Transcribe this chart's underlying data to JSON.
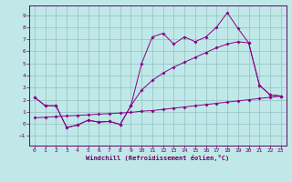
{
  "bg_color": "#c0e8e8",
  "grid_color": "#90c0c0",
  "line_color": "#880088",
  "spine_color": "#660066",
  "tick_color": "#660066",
  "xlabel": "Windchill (Refroidissement éolien,°C)",
  "xlim": [
    -0.5,
    23.5
  ],
  "ylim": [
    -1.8,
    9.8
  ],
  "xticks": [
    0,
    1,
    2,
    3,
    4,
    5,
    6,
    7,
    8,
    9,
    10,
    11,
    12,
    13,
    14,
    15,
    16,
    17,
    18,
    19,
    20,
    21,
    22,
    23
  ],
  "yticks": [
    -1,
    0,
    1,
    2,
    3,
    4,
    5,
    6,
    7,
    8,
    9
  ],
  "curve1_x": [
    0,
    1,
    2,
    3,
    4,
    5,
    6,
    7,
    8,
    9,
    10,
    11,
    12,
    13,
    14,
    15,
    16,
    17,
    18,
    19,
    20,
    21,
    22,
    23
  ],
  "curve1_y": [
    2.2,
    1.5,
    1.5,
    -0.3,
    -0.1,
    0.3,
    0.15,
    0.2,
    -0.05,
    1.5,
    5.0,
    7.2,
    7.5,
    6.6,
    7.2,
    6.8,
    7.2,
    8.0,
    9.2,
    7.9,
    6.7,
    3.2,
    2.4,
    2.3
  ],
  "curve2_x": [
    0,
    1,
    2,
    3,
    4,
    5,
    6,
    7,
    8,
    9,
    10,
    11,
    12,
    13,
    14,
    15,
    16,
    17,
    18,
    19,
    20,
    21,
    22,
    23
  ],
  "curve2_y": [
    2.2,
    1.5,
    1.5,
    -0.3,
    -0.1,
    0.3,
    0.15,
    0.2,
    -0.05,
    1.5,
    2.8,
    3.6,
    4.2,
    4.7,
    5.1,
    5.5,
    5.9,
    6.3,
    6.6,
    6.8,
    6.7,
    3.2,
    2.4,
    2.3
  ],
  "curve3_x": [
    0,
    1,
    2,
    3,
    4,
    5,
    6,
    7,
    8,
    9,
    10,
    11,
    12,
    13,
    14,
    15,
    16,
    17,
    18,
    19,
    20,
    21,
    22,
    23
  ],
  "curve3_y": [
    0.5,
    0.55,
    0.6,
    0.65,
    0.7,
    0.75,
    0.8,
    0.85,
    0.9,
    0.95,
    1.05,
    1.1,
    1.2,
    1.3,
    1.4,
    1.5,
    1.6,
    1.7,
    1.8,
    1.9,
    2.0,
    2.1,
    2.2,
    2.3
  ]
}
